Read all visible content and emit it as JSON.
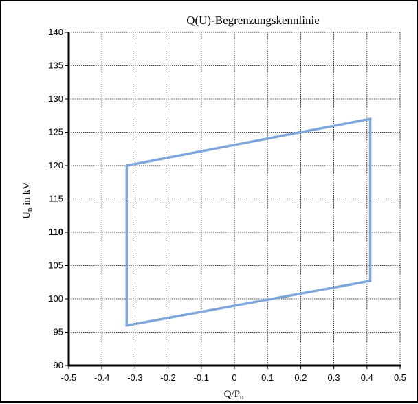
{
  "chart_data": {
    "type": "line",
    "title": "Q(U)-Begrenzungskennlinie",
    "xlabel": {
      "main": "Q/P",
      "sub": "n"
    },
    "ylabel": {
      "main": "U",
      "sub": "n",
      "rest": " in kV"
    },
    "xlim": [
      -0.5,
      0.5
    ],
    "ylim": [
      90,
      140
    ],
    "x_ticks": [
      -0.5,
      -0.4,
      -0.3,
      -0.2,
      -0.1,
      0,
      0.1,
      0.2,
      0.3,
      0.4,
      0.5
    ],
    "x_tick_labels": [
      "-0.5",
      "-0.4",
      "-0.3",
      "-0.2",
      "-0.1",
      "0",
      "0.1",
      "0.2",
      "0.3",
      "0.4",
      "0.5"
    ],
    "y_ticks": [
      90,
      95,
      100,
      105,
      110,
      115,
      120,
      125,
      130,
      135,
      140
    ],
    "y_tick_labels": [
      "90",
      "95",
      "100",
      "105",
      "110",
      "115",
      "120",
      "125",
      "130",
      "135",
      "140"
    ],
    "y_bold_tick": 110,
    "grid": true,
    "series": [
      {
        "color": "#7da7dc",
        "points": [
          {
            "x": -0.325,
            "y": 120.0
          },
          {
            "x": 0.41,
            "y": 127.0
          },
          {
            "x": 0.41,
            "y": 102.7
          },
          {
            "x": -0.325,
            "y": 96.0
          },
          {
            "x": -0.325,
            "y": 120.0
          }
        ]
      }
    ]
  }
}
